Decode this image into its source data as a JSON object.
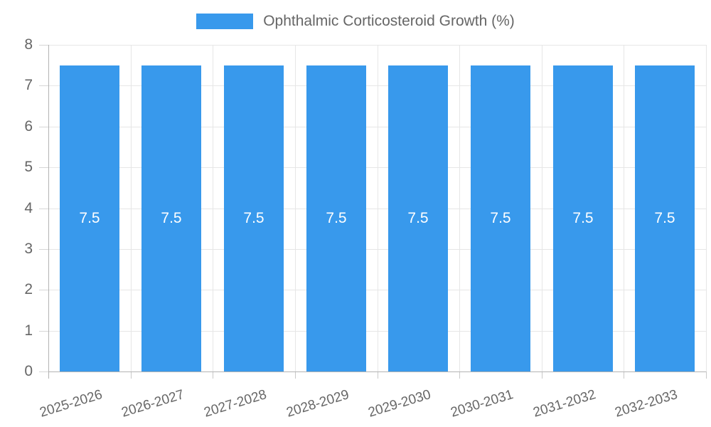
{
  "legend": {
    "label": "Ophthalmic Corticosteroid Growth (%)"
  },
  "chart_data": {
    "type": "bar",
    "title": "",
    "categories": [
      "2025-2026",
      "2026-2027",
      "2027-2028",
      "2028-2029",
      "2029-2030",
      "2030-2031",
      "2031-2032",
      "2032-2033"
    ],
    "values": [
      7.5,
      7.5,
      7.5,
      7.5,
      7.5,
      7.5,
      7.5,
      7.5
    ],
    "value_labels": [
      "7.5",
      "7.5",
      "7.5",
      "7.5",
      "7.5",
      "7.5",
      "7.5",
      "7.5"
    ],
    "series_name": "Ophthalmic Corticosteroid Growth (%)",
    "xlabel": "",
    "ylabel": "",
    "ylim": [
      0,
      8
    ],
    "yticks": [
      0,
      1,
      2,
      3,
      4,
      5,
      6,
      7,
      8
    ],
    "grid": true,
    "legend_position": "top",
    "colors": {
      "bar": "#3899ec",
      "value_label": "#ffffff",
      "axis_text": "#666666",
      "gridline": "#e6e6e6",
      "axis_line": "#b3b3b3",
      "background": "#ffffff"
    }
  }
}
